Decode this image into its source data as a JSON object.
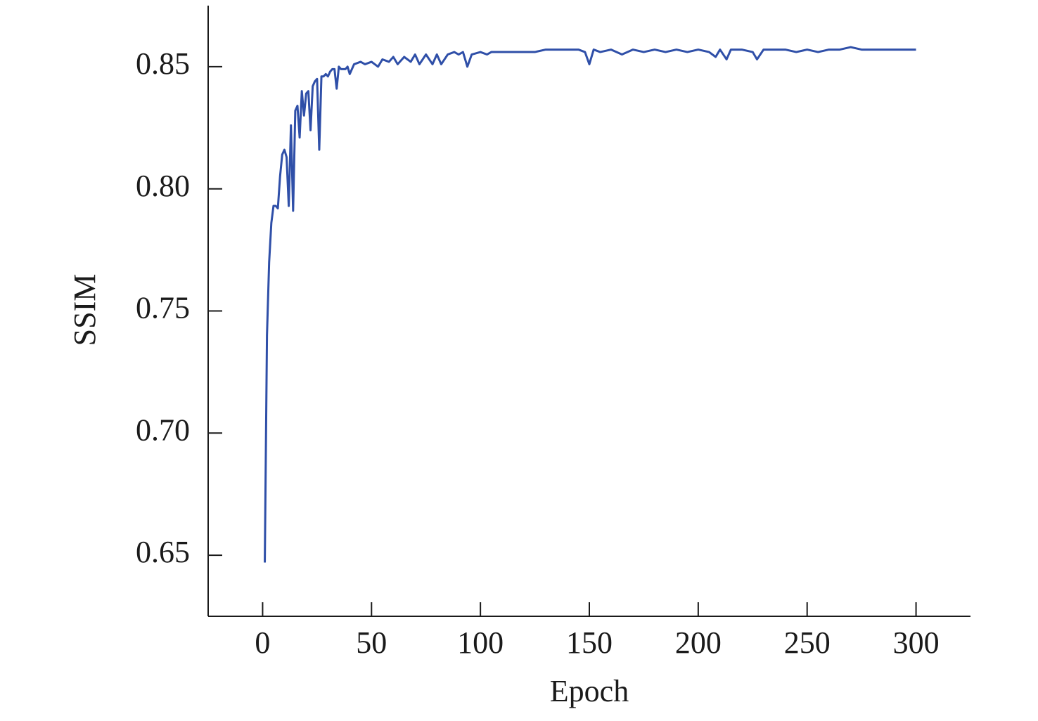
{
  "chart_data": {
    "type": "line",
    "xlabel": "Epoch",
    "ylabel": "SSIM",
    "x": [
      1,
      2,
      3,
      4,
      5,
      6,
      7,
      8,
      9,
      10,
      11,
      12,
      13,
      14,
      15,
      16,
      17,
      18,
      19,
      20,
      21,
      22,
      23,
      24,
      25,
      26,
      27,
      28,
      29,
      30,
      31,
      32,
      33,
      34,
      35,
      36,
      37,
      38,
      39,
      40,
      42,
      45,
      47,
      50,
      53,
      55,
      58,
      60,
      62,
      65,
      68,
      70,
      72,
      75,
      78,
      80,
      82,
      85,
      88,
      90,
      92,
      94,
      96,
      100,
      103,
      105,
      110,
      115,
      120,
      125,
      130,
      135,
      140,
      145,
      148,
      150,
      152,
      155,
      160,
      165,
      170,
      175,
      180,
      185,
      190,
      195,
      200,
      205,
      208,
      210,
      213,
      215,
      220,
      225,
      227,
      230,
      235,
      240,
      245,
      250,
      255,
      260,
      265,
      270,
      275,
      280,
      285,
      290,
      295,
      300
    ],
    "series": [
      {
        "name": "SSIM",
        "color": "#2f4fa8",
        "values": [
          0.647,
          0.74,
          0.77,
          0.786,
          0.793,
          0.793,
          0.792,
          0.805,
          0.814,
          0.816,
          0.813,
          0.793,
          0.826,
          0.791,
          0.832,
          0.834,
          0.821,
          0.84,
          0.83,
          0.839,
          0.84,
          0.824,
          0.842,
          0.844,
          0.845,
          0.816,
          0.846,
          0.846,
          0.847,
          0.846,
          0.848,
          0.849,
          0.849,
          0.841,
          0.85,
          0.849,
          0.849,
          0.849,
          0.85,
          0.847,
          0.851,
          0.852,
          0.851,
          0.852,
          0.85,
          0.853,
          0.852,
          0.854,
          0.851,
          0.854,
          0.852,
          0.855,
          0.851,
          0.855,
          0.851,
          0.855,
          0.851,
          0.855,
          0.856,
          0.855,
          0.856,
          0.85,
          0.855,
          0.856,
          0.855,
          0.856,
          0.856,
          0.856,
          0.856,
          0.856,
          0.857,
          0.857,
          0.857,
          0.857,
          0.856,
          0.851,
          0.857,
          0.856,
          0.857,
          0.855,
          0.857,
          0.856,
          0.857,
          0.856,
          0.857,
          0.856,
          0.857,
          0.856,
          0.854,
          0.857,
          0.853,
          0.857,
          0.857,
          0.856,
          0.853,
          0.857,
          0.857,
          0.857,
          0.856,
          0.857,
          0.856,
          0.857,
          0.857,
          0.858,
          0.857,
          0.857,
          0.857,
          0.857,
          0.857,
          0.857
        ]
      }
    ],
    "xlim": [
      -25,
      325
    ],
    "xticks": [
      0,
      50,
      100,
      150,
      200,
      250,
      300
    ],
    "ylim": [
      0.625,
      0.875
    ],
    "yticks": [
      {
        "value": 0.65,
        "label": "0.65"
      },
      {
        "value": 0.7,
        "label": "0.70"
      },
      {
        "value": 0.75,
        "label": "0.75"
      },
      {
        "value": 0.8,
        "label": "0.80"
      },
      {
        "value": 0.85,
        "label": "0.85"
      }
    ],
    "grid": false
  }
}
